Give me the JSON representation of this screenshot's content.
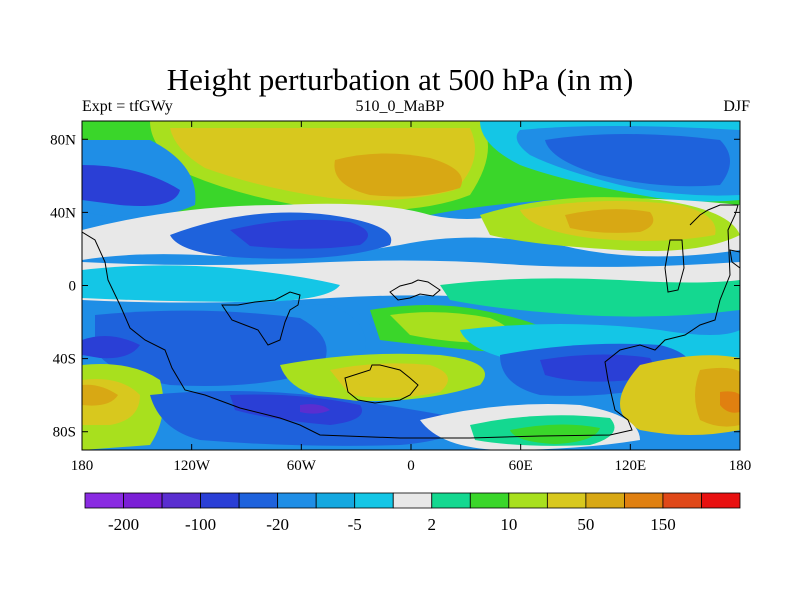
{
  "chart_data": {
    "type": "heatmap",
    "title": "Height perturbation at 500 hPa (in m)",
    "left_label": "Expt = tfGWy",
    "center_label": "510_0_MaBP",
    "right_label": "DJF",
    "x_range": [
      -180,
      180
    ],
    "y_range": [
      -90,
      90
    ],
    "x_ticks": [
      {
        "value": -180,
        "label": "180"
      },
      {
        "value": -120,
        "label": "120W"
      },
      {
        "value": -60,
        "label": "60W"
      },
      {
        "value": 0,
        "label": "0"
      },
      {
        "value": 60,
        "label": "60E"
      },
      {
        "value": 120,
        "label": "120E"
      },
      {
        "value": 180,
        "label": "180"
      }
    ],
    "y_ticks": [
      {
        "value": 80,
        "label": "80N"
      },
      {
        "value": 40,
        "label": "40N"
      },
      {
        "value": 0,
        "label": "0"
      },
      {
        "value": -40,
        "label": "40S"
      },
      {
        "value": -80,
        "label": "80S"
      }
    ],
    "colorbar": {
      "colors": [
        "#8a2be2",
        "#7b1fd6",
        "#5a2ed0",
        "#2a3fd6",
        "#1e62dc",
        "#1f8ee6",
        "#14a8e0",
        "#14c6e6",
        "#e8e8e8",
        "#14d890",
        "#3ad62a",
        "#a8e01e",
        "#d8c81e",
        "#d8a814",
        "#e08010",
        "#e04818",
        "#e81010"
      ],
      "labels": [
        {
          "boundary": 1,
          "text": "-200"
        },
        {
          "boundary": 3,
          "text": "-100"
        },
        {
          "boundary": 5,
          "text": "-20"
        },
        {
          "boundary": 7,
          "text": "-5"
        },
        {
          "boundary": 9,
          "text": "2"
        },
        {
          "boundary": 11,
          "text": "10"
        },
        {
          "boundary": 13,
          "text": "50"
        },
        {
          "boundary": 15,
          "text": "150"
        }
      ]
    }
  }
}
